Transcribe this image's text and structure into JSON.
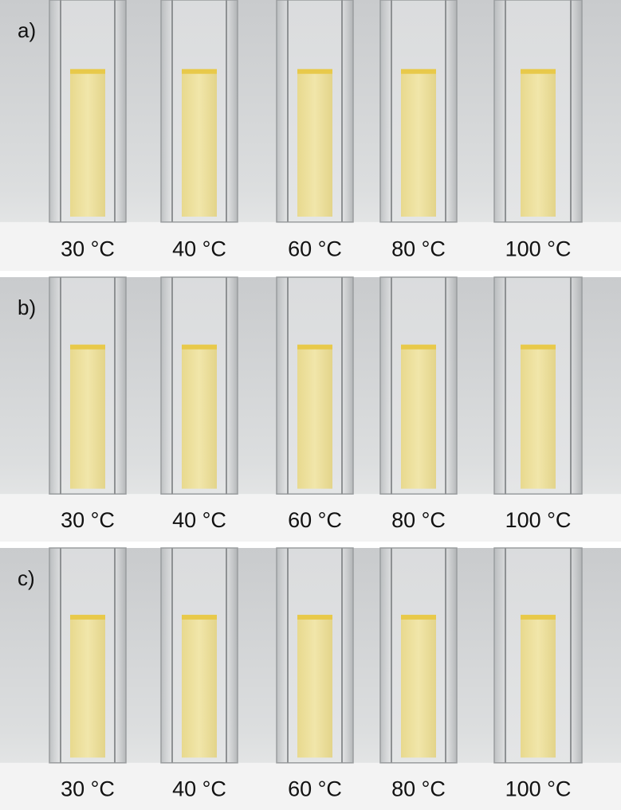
{
  "panels": [
    {
      "label": "a)",
      "samples": [
        "30 °C",
        "40 °C",
        "60 °C",
        "80 °C",
        "100 °C"
      ]
    },
    {
      "label": "b)",
      "samples": [
        "30 °C",
        "40 °C",
        "60 °C",
        "80 °C",
        "100 °C"
      ]
    },
    {
      "label": "c)",
      "samples": [
        "30 °C",
        "40 °C",
        "60 °C",
        "80 °C",
        "100 °C"
      ]
    }
  ]
}
